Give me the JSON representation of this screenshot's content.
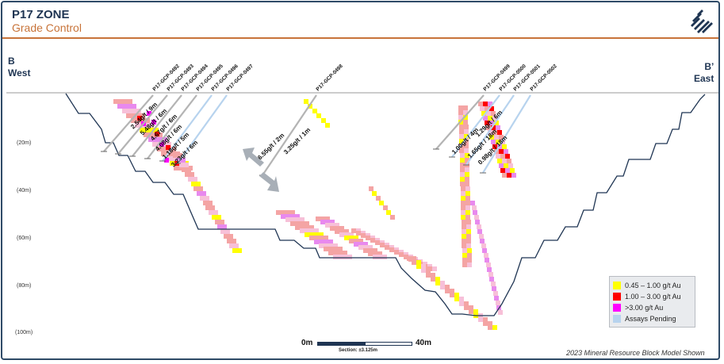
{
  "header": {
    "title": "P17 ZONE",
    "subtitle": "Grade Control",
    "logo_icon": "company-logo-icon"
  },
  "section_ends": {
    "left_line1": "B",
    "left_line2": "West",
    "right_line1": "B’",
    "right_line2": "East"
  },
  "depth_labels": [
    "(20m)",
    "(40m)",
    "(60m)",
    "(80m)",
    "(100m)"
  ],
  "drillholes_west": [
    "P17-GCP-0492",
    "P17-GCP-0493",
    "P17-GCP-0494",
    "P17-GCP-0495",
    "P17-GCP-0496",
    "P17-GCP-0497"
  ],
  "drillholes_center": [
    "P17-GCP-0498"
  ],
  "drillholes_east": [
    "P17-GCP-0499",
    "P17-GCP-0500",
    "P17-GCP-0501",
    "P17-GCP-0502"
  ],
  "intercepts_west": [
    "2.54g/t / 9m",
    "5.48g/t / 6m",
    "4.67g/t / 6m",
    "4.08g/t / 6m",
    "1.18g/t / 5m",
    "3.23g/t / 6m"
  ],
  "intercepts_center": [
    "16.55g/t / 2m",
    "3.25g/t / 1m"
  ],
  "intercepts_east": [
    "1.00g/t / 4m",
    "1.29g/t / 6m",
    "1.65g/t / 18m",
    "0.98g/t / 18m"
  ],
  "legend": [
    {
      "label": "0.45 – 1.00 g/t Au",
      "color": "#ffff00"
    },
    {
      "label": "1.00 – 3.00 g/t Au",
      "color": "#ff0000"
    },
    {
      "label": ">3.00 g/t Au",
      "color": "#ff00ff"
    },
    {
      "label": "Assays Pending",
      "color": "#b7d3ee"
    }
  ],
  "scale": {
    "left": "0m",
    "right": "40m",
    "section_note": "Section: ±3.125m"
  },
  "footnote": "2023 Mineral Resource Block Model Shown"
}
